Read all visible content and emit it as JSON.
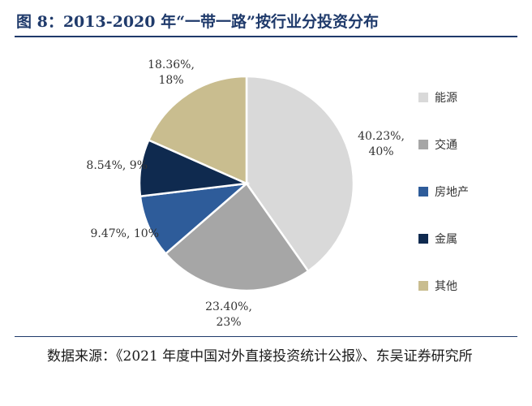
{
  "figure": {
    "title": "图 8：2013-2020 年“一带一路”按行业分投资分布",
    "source": "数据来源：《2021 年度中国对外直接投资统计公报》、东吴证券研究所"
  },
  "chart_data": {
    "type": "pie",
    "title": "",
    "legend_position": "right",
    "slices": [
      {
        "name": "能源",
        "value": 40.23,
        "label_line1": "40.23%,",
        "label_line2": "40%",
        "color": "#d9d9d9"
      },
      {
        "name": "交通",
        "value": 23.4,
        "label_line1": "23.40%,",
        "label_line2": "23%",
        "color": "#a6a6a6"
      },
      {
        "name": "房地产",
        "value": 9.47,
        "label_line1": "9.47%, 10%",
        "label_line2": "",
        "color": "#2e5c9a"
      },
      {
        "name": "金属",
        "value": 8.54,
        "label_line1": "8.54%, 9%",
        "label_line2": "",
        "color": "#0f2a4f"
      },
      {
        "name": "其他",
        "value": 18.36,
        "label_line1": "18.36%,",
        "label_line2": "18%",
        "color": "#c9bd8f"
      }
    ]
  }
}
